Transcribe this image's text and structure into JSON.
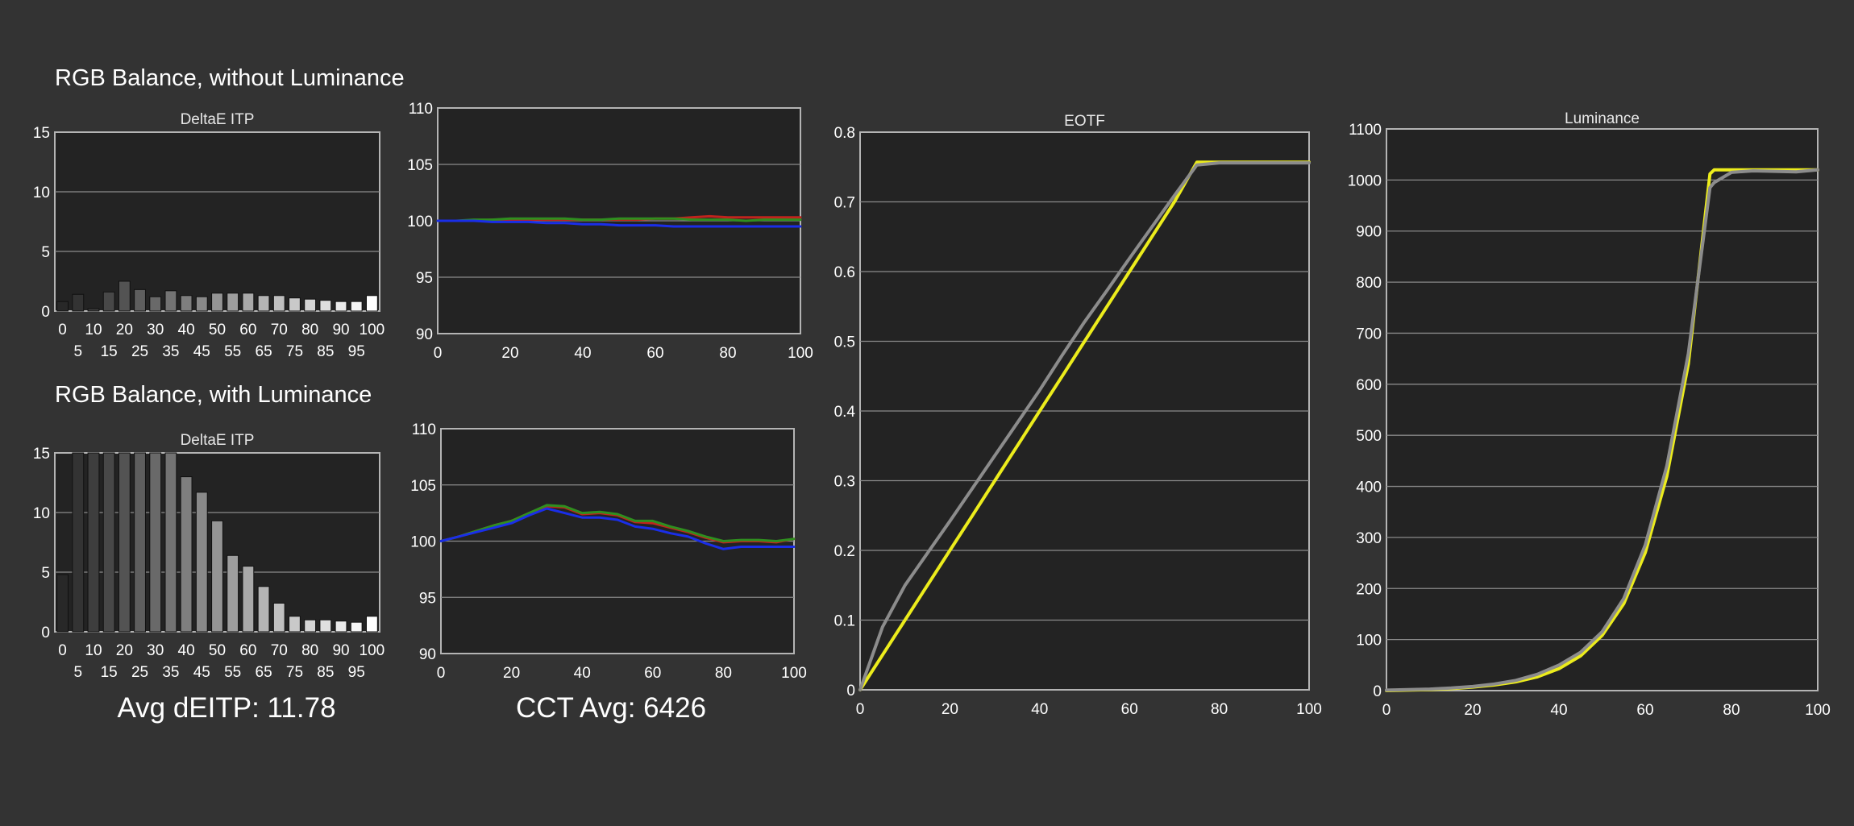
{
  "headings": {
    "without_luminance": "RGB Balance, without Luminance",
    "with_luminance": "RGB Balance, with Luminance"
  },
  "summary": {
    "avg_deitp": "Avg dEITP: 11.78",
    "cct_avg": "CCT Avg: 6426"
  },
  "colors": {
    "background": "#333333",
    "plot_background": "#232323",
    "red": "#c0241d",
    "green": "#2f8f1f",
    "blue": "#1a2ee8",
    "target": "#ecec1c",
    "measured": "#8c8c8c"
  },
  "chart_data": [
    {
      "id": "deitp_without",
      "type": "bar",
      "title": "DeltaE ITP",
      "categories": [
        0,
        5,
        10,
        15,
        20,
        25,
        30,
        35,
        40,
        45,
        50,
        55,
        60,
        65,
        70,
        75,
        80,
        85,
        90,
        95,
        100
      ],
      "values": [
        0.8,
        1.4,
        0.2,
        1.6,
        2.5,
        1.8,
        1.2,
        1.7,
        1.3,
        1.2,
        1.5,
        1.5,
        1.5,
        1.3,
        1.3,
        1.1,
        1.0,
        0.9,
        0.8,
        0.8,
        1.3
      ],
      "ylim": [
        0,
        15
      ],
      "yticks": [
        0,
        5,
        10,
        15
      ],
      "xticks_top": [
        "0",
        "10",
        "20",
        "30",
        "40",
        "50",
        "60",
        "70",
        "80",
        "90",
        "100"
      ],
      "xticks_bottom": [
        "5",
        "15",
        "25",
        "35",
        "45",
        "55",
        "65",
        "75",
        "85",
        "95"
      ]
    },
    {
      "id": "rgb_without",
      "type": "line",
      "title": "",
      "x": [
        0,
        5,
        10,
        15,
        20,
        25,
        30,
        35,
        40,
        45,
        50,
        55,
        60,
        65,
        70,
        75,
        80,
        85,
        90,
        95,
        100
      ],
      "series": [
        {
          "color": "red",
          "values": [
            100,
            100,
            100,
            100.1,
            100.1,
            100.1,
            100.1,
            100.1,
            100.1,
            100.1,
            100.1,
            100.1,
            100.2,
            100.2,
            100.3,
            100.4,
            100.3,
            100.3,
            100.3,
            100.3,
            100.3
          ]
        },
        {
          "color": "green",
          "values": [
            100,
            100,
            100.1,
            100.1,
            100.2,
            100.2,
            100.2,
            100.2,
            100.1,
            100.1,
            100.2,
            100.2,
            100.2,
            100.2,
            100.1,
            100.1,
            100.1,
            100.0,
            100.1,
            100.1,
            100.1
          ]
        },
        {
          "color": "blue",
          "values": [
            100,
            100,
            100,
            99.9,
            99.9,
            99.9,
            99.8,
            99.8,
            99.7,
            99.7,
            99.6,
            99.6,
            99.6,
            99.5,
            99.5,
            99.5,
            99.5,
            99.5,
            99.5,
            99.5,
            99.5
          ]
        }
      ],
      "ylim": [
        90,
        110
      ],
      "yticks": [
        90,
        95,
        100,
        105,
        110
      ],
      "xlim": [
        0,
        100
      ],
      "xticks": [
        0,
        20,
        40,
        60,
        80,
        100
      ]
    },
    {
      "id": "deitp_with",
      "type": "bar",
      "title": "DeltaE ITP",
      "categories": [
        0,
        5,
        10,
        15,
        20,
        25,
        30,
        35,
        40,
        45,
        50,
        55,
        60,
        65,
        70,
        75,
        80,
        85,
        90,
        95,
        100
      ],
      "values": [
        4.8,
        15,
        15,
        15,
        15,
        15,
        15,
        15,
        13.0,
        11.7,
        9.3,
        6.4,
        5.5,
        3.8,
        2.4,
        1.3,
        1.0,
        1.0,
        0.9,
        0.8,
        1.3
      ],
      "ylim": [
        0,
        15
      ],
      "yticks": [
        0,
        5,
        10,
        15
      ],
      "xticks_top": [
        "0",
        "10",
        "20",
        "30",
        "40",
        "50",
        "60",
        "70",
        "80",
        "90",
        "100"
      ],
      "xticks_bottom": [
        "5",
        "15",
        "25",
        "35",
        "45",
        "55",
        "65",
        "75",
        "85",
        "95"
      ]
    },
    {
      "id": "rgb_with",
      "type": "line",
      "title": "",
      "x": [
        0,
        5,
        10,
        15,
        20,
        25,
        30,
        35,
        40,
        45,
        50,
        55,
        60,
        65,
        70,
        75,
        80,
        85,
        90,
        95,
        100
      ],
      "series": [
        {
          "color": "red",
          "values": [
            100,
            100.4,
            100.9,
            101.4,
            101.8,
            102.5,
            103.1,
            103.0,
            102.4,
            102.5,
            102.3,
            101.7,
            101.6,
            101.2,
            100.8,
            100.3,
            99.9,
            100.0,
            100.0,
            99.9,
            100.2
          ]
        },
        {
          "color": "green",
          "values": [
            100,
            100.4,
            100.9,
            101.4,
            101.8,
            102.5,
            103.2,
            103.1,
            102.5,
            102.6,
            102.4,
            101.8,
            101.8,
            101.3,
            100.9,
            100.4,
            100.0,
            100.1,
            100.1,
            100.0,
            100.2
          ]
        },
        {
          "color": "blue",
          "values": [
            100,
            100.4,
            100.8,
            101.2,
            101.6,
            102.3,
            102.9,
            102.5,
            102.1,
            102.1,
            101.9,
            101.3,
            101.1,
            100.7,
            100.4,
            99.8,
            99.3,
            99.5,
            99.5,
            99.5,
            99.5
          ]
        }
      ],
      "ylim": [
        90,
        110
      ],
      "yticks": [
        90,
        95,
        100,
        105,
        110
      ],
      "xlim": [
        0,
        100
      ],
      "xticks": [
        0,
        20,
        40,
        60,
        80,
        100
      ]
    },
    {
      "id": "eotf",
      "type": "line",
      "title": "EOTF",
      "x": [
        0,
        5,
        10,
        15,
        20,
        25,
        30,
        35,
        40,
        45,
        50,
        55,
        60,
        65,
        70,
        75,
        80,
        85,
        90,
        95,
        100
      ],
      "series": [
        {
          "color": "target",
          "values": [
            0,
            0.05,
            0.1,
            0.15,
            0.2,
            0.25,
            0.3,
            0.35,
            0.4,
            0.45,
            0.5,
            0.55,
            0.6,
            0.65,
            0.7,
            0.757,
            0.757,
            0.757,
            0.757,
            0.757,
            0.757
          ]
        },
        {
          "color": "measured",
          "values": [
            0,
            0.09,
            0.15,
            0.196,
            0.242,
            0.289,
            0.336,
            0.383,
            0.43,
            0.48,
            0.528,
            0.573,
            0.619,
            0.664,
            0.709,
            0.753,
            0.756,
            0.756,
            0.756,
            0.756,
            0.756
          ]
        }
      ],
      "ylim": [
        0,
        0.8
      ],
      "yticks": [
        "0",
        "0.1",
        "0.2",
        "0.3",
        "0.4",
        "0.5",
        "0.6",
        "0.7",
        "0.8"
      ],
      "xlim": [
        0,
        100
      ],
      "xticks": [
        0,
        20,
        40,
        60,
        80,
        100
      ]
    },
    {
      "id": "luminance",
      "type": "line",
      "title": "Luminance",
      "x": [
        0,
        5,
        10,
        15,
        20,
        25,
        30,
        35,
        40,
        45,
        50,
        55,
        60,
        65,
        70,
        75,
        76,
        80,
        85,
        90,
        95,
        100
      ],
      "series": [
        {
          "color": "target",
          "values": [
            0,
            1,
            2,
            4,
            7,
            11,
            17,
            27,
            43,
            68,
            108,
            170,
            270,
            420,
            640,
            1012,
            1020,
            1020,
            1020,
            1020,
            1020,
            1020
          ]
        },
        {
          "color": "measured",
          "values": [
            1,
            2,
            3,
            5,
            8,
            13,
            20,
            32,
            50,
            75,
            115,
            180,
            285,
            440,
            660,
            985,
            995,
            1015,
            1018,
            1017,
            1016,
            1020
          ]
        }
      ],
      "ylim": [
        0,
        1100
      ],
      "yticks": [
        0,
        100,
        200,
        300,
        400,
        500,
        600,
        700,
        800,
        900,
        1000,
        1100
      ],
      "xlim": [
        0,
        100
      ],
      "xticks": [
        0,
        20,
        40,
        60,
        80,
        100
      ]
    }
  ]
}
